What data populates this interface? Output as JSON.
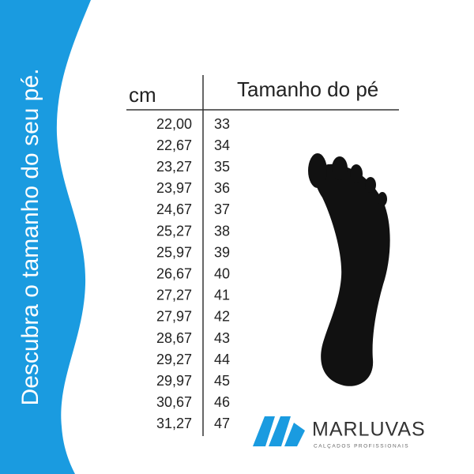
{
  "sidebar": {
    "text": "Descubra o tamanho do seu pé."
  },
  "table": {
    "headers": [
      "cm",
      "Tamanho do pé"
    ],
    "rows": [
      [
        "22,00",
        "33"
      ],
      [
        "22,67",
        "34"
      ],
      [
        "23,27",
        "35"
      ],
      [
        "23,97",
        "36"
      ],
      [
        "24,67",
        "37"
      ],
      [
        "25,27",
        "38"
      ],
      [
        "25,97",
        "39"
      ],
      [
        "26,67",
        "40"
      ],
      [
        "27,27",
        "41"
      ],
      [
        "27,97",
        "42"
      ],
      [
        "28,67",
        "43"
      ],
      [
        "29,27",
        "44"
      ],
      [
        "29,97",
        "45"
      ],
      [
        "30,67",
        "46"
      ],
      [
        "31,27",
        "47"
      ]
    ]
  },
  "logo": {
    "name": "MARLUVAS",
    "tagline": "CALÇADOS PROFISSIONAIS"
  }
}
